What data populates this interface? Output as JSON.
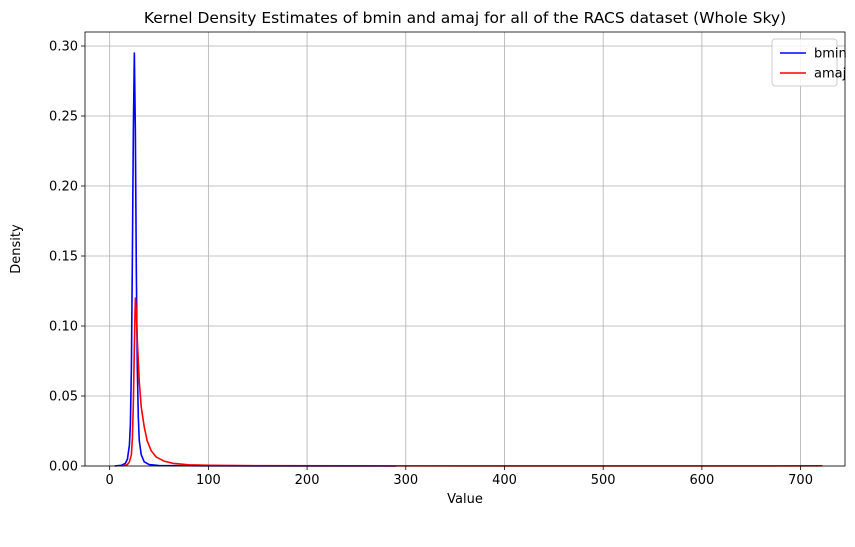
{
  "chart_data": {
    "type": "line",
    "title": "Kernel Density Estimates of bmin and amaj for all of the RACS dataset (Whole Sky)",
    "xlabel": "Value",
    "ylabel": "Density",
    "xlim": [
      -25,
      745
    ],
    "ylim": [
      0,
      0.31
    ],
    "x_ticks": [
      0,
      100,
      200,
      300,
      400,
      500,
      600,
      700
    ],
    "y_ticks": [
      0.0,
      0.05,
      0.1,
      0.15,
      0.2,
      0.25,
      0.3
    ],
    "x_tick_labels": [
      "0",
      "100",
      "200",
      "300",
      "400",
      "500",
      "600",
      "700"
    ],
    "y_tick_labels": [
      "0.00",
      "0.05",
      "0.10",
      "0.15",
      "0.20",
      "0.25",
      "0.30"
    ],
    "grid": true,
    "legend": "top-right",
    "series": [
      {
        "name": "bmin",
        "color": "#0000ff",
        "points": [
          [
            5,
            0
          ],
          [
            12,
            0.0005
          ],
          [
            16,
            0.002
          ],
          [
            18,
            0.005
          ],
          [
            20,
            0.015
          ],
          [
            21,
            0.03
          ],
          [
            22,
            0.07
          ],
          [
            23,
            0.15
          ],
          [
            24,
            0.24
          ],
          [
            25,
            0.295
          ],
          [
            26,
            0.24
          ],
          [
            27,
            0.14
          ],
          [
            28,
            0.07
          ],
          [
            29,
            0.035
          ],
          [
            30,
            0.018
          ],
          [
            32,
            0.008
          ],
          [
            35,
            0.003
          ],
          [
            40,
            0.001
          ],
          [
            50,
            0.0003
          ],
          [
            100,
            0.0001
          ],
          [
            200,
            5e-05
          ],
          [
            290,
            0
          ]
        ]
      },
      {
        "name": "amaj",
        "color": "#ff0000",
        "points": [
          [
            12,
            0
          ],
          [
            18,
            0.001
          ],
          [
            20,
            0.003
          ],
          [
            22,
            0.008
          ],
          [
            23,
            0.02
          ],
          [
            24,
            0.045
          ],
          [
            25,
            0.085
          ],
          [
            26,
            0.12
          ],
          [
            27,
            0.11
          ],
          [
            28,
            0.09
          ],
          [
            29,
            0.075
          ],
          [
            30,
            0.06
          ],
          [
            32,
            0.042
          ],
          [
            35,
            0.028
          ],
          [
            38,
            0.018
          ],
          [
            42,
            0.011
          ],
          [
            47,
            0.0065
          ],
          [
            55,
            0.0035
          ],
          [
            65,
            0.0018
          ],
          [
            80,
            0.0009
          ],
          [
            100,
            0.0005
          ],
          [
            150,
            0.0002
          ],
          [
            250,
            0.0001
          ],
          [
            400,
            5e-05
          ],
          [
            550,
            3e-05
          ],
          [
            722,
            0.0001
          ]
        ]
      }
    ]
  }
}
